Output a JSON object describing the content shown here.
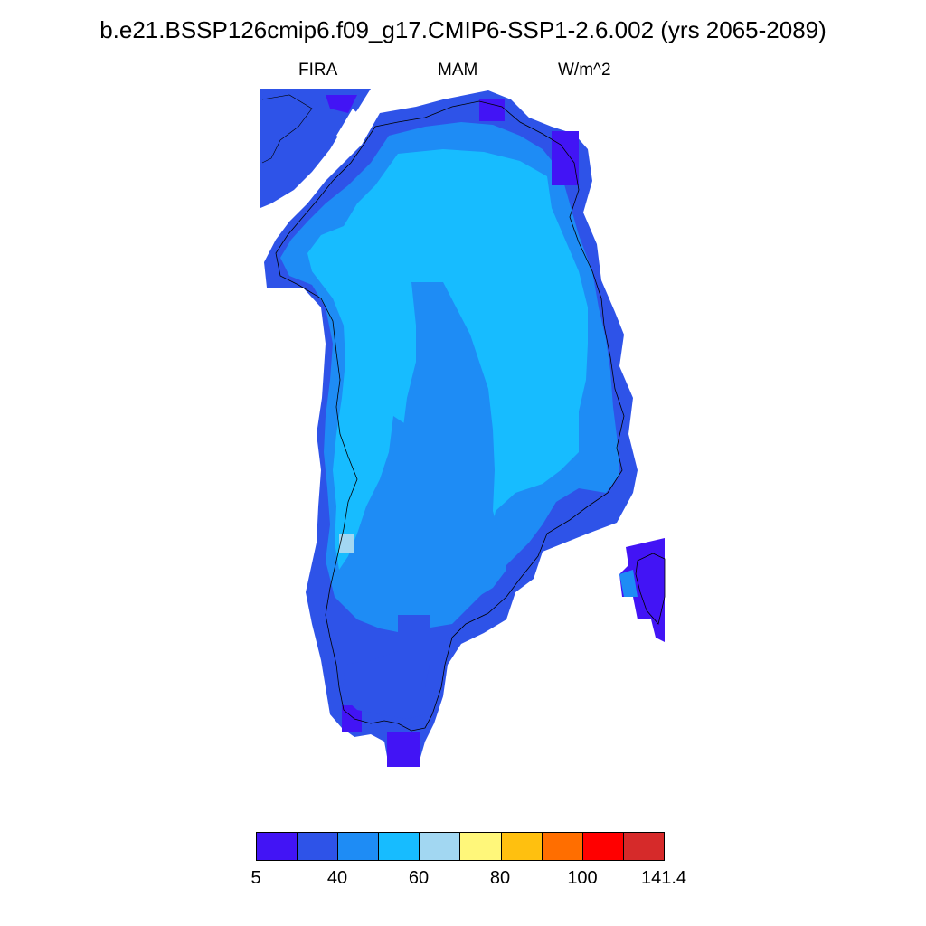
{
  "title": "b.e21.BSSP126cmip6.f09_g17.CMIP6-SSP1-2.6.002 (yrs 2065-2089)",
  "subtitle": {
    "left": "FIRA",
    "center": "MAM",
    "right": "W/m^2"
  },
  "colorbar": {
    "colors": [
      "#4214f5",
      "#2e53e8",
      "#1e8cf5",
      "#17bcff",
      "#a2d7f2",
      "#fff77a",
      "#ffc00f",
      "#ff6e00",
      "#ff0000",
      "#d62a2a"
    ],
    "tick_labels": [
      "5",
      "40",
      "60",
      "80",
      "100",
      "141.4"
    ]
  },
  "map_legend": {
    "deep": "#4214f5",
    "dark": "#2e53e8",
    "mid": "#1e8cf5",
    "light": "#17bcff",
    "pale": "#a2d7f2"
  }
}
